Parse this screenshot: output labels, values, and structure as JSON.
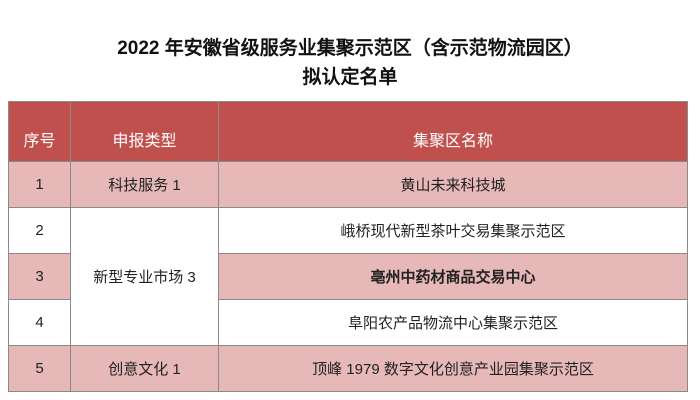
{
  "title": {
    "line1": "2022 年安徽省级服务业集聚示范区（含示范物流园区）",
    "line2": "拟认定名单"
  },
  "colors": {
    "header": "#c0504d",
    "row_highlight": "#e6b8b7"
  },
  "table": {
    "headers": [
      "序号",
      "申报类型",
      "集聚区名称"
    ],
    "rows": [
      {
        "no": "1",
        "type": "科技服务 1",
        "name": "黄山未来科技城"
      },
      {
        "no": "2",
        "type": "新型专业市场 3",
        "name": "峨桥现代新型茶叶交易集聚示范区"
      },
      {
        "no": "3",
        "name": "亳州中药材商品交易中心"
      },
      {
        "no": "4",
        "name": "阜阳农产品物流中心集聚示范区"
      },
      {
        "no": "5",
        "type": "创意文化 1",
        "name": "顶峰 1979 数字文化创意产业园集聚示范区"
      }
    ]
  }
}
